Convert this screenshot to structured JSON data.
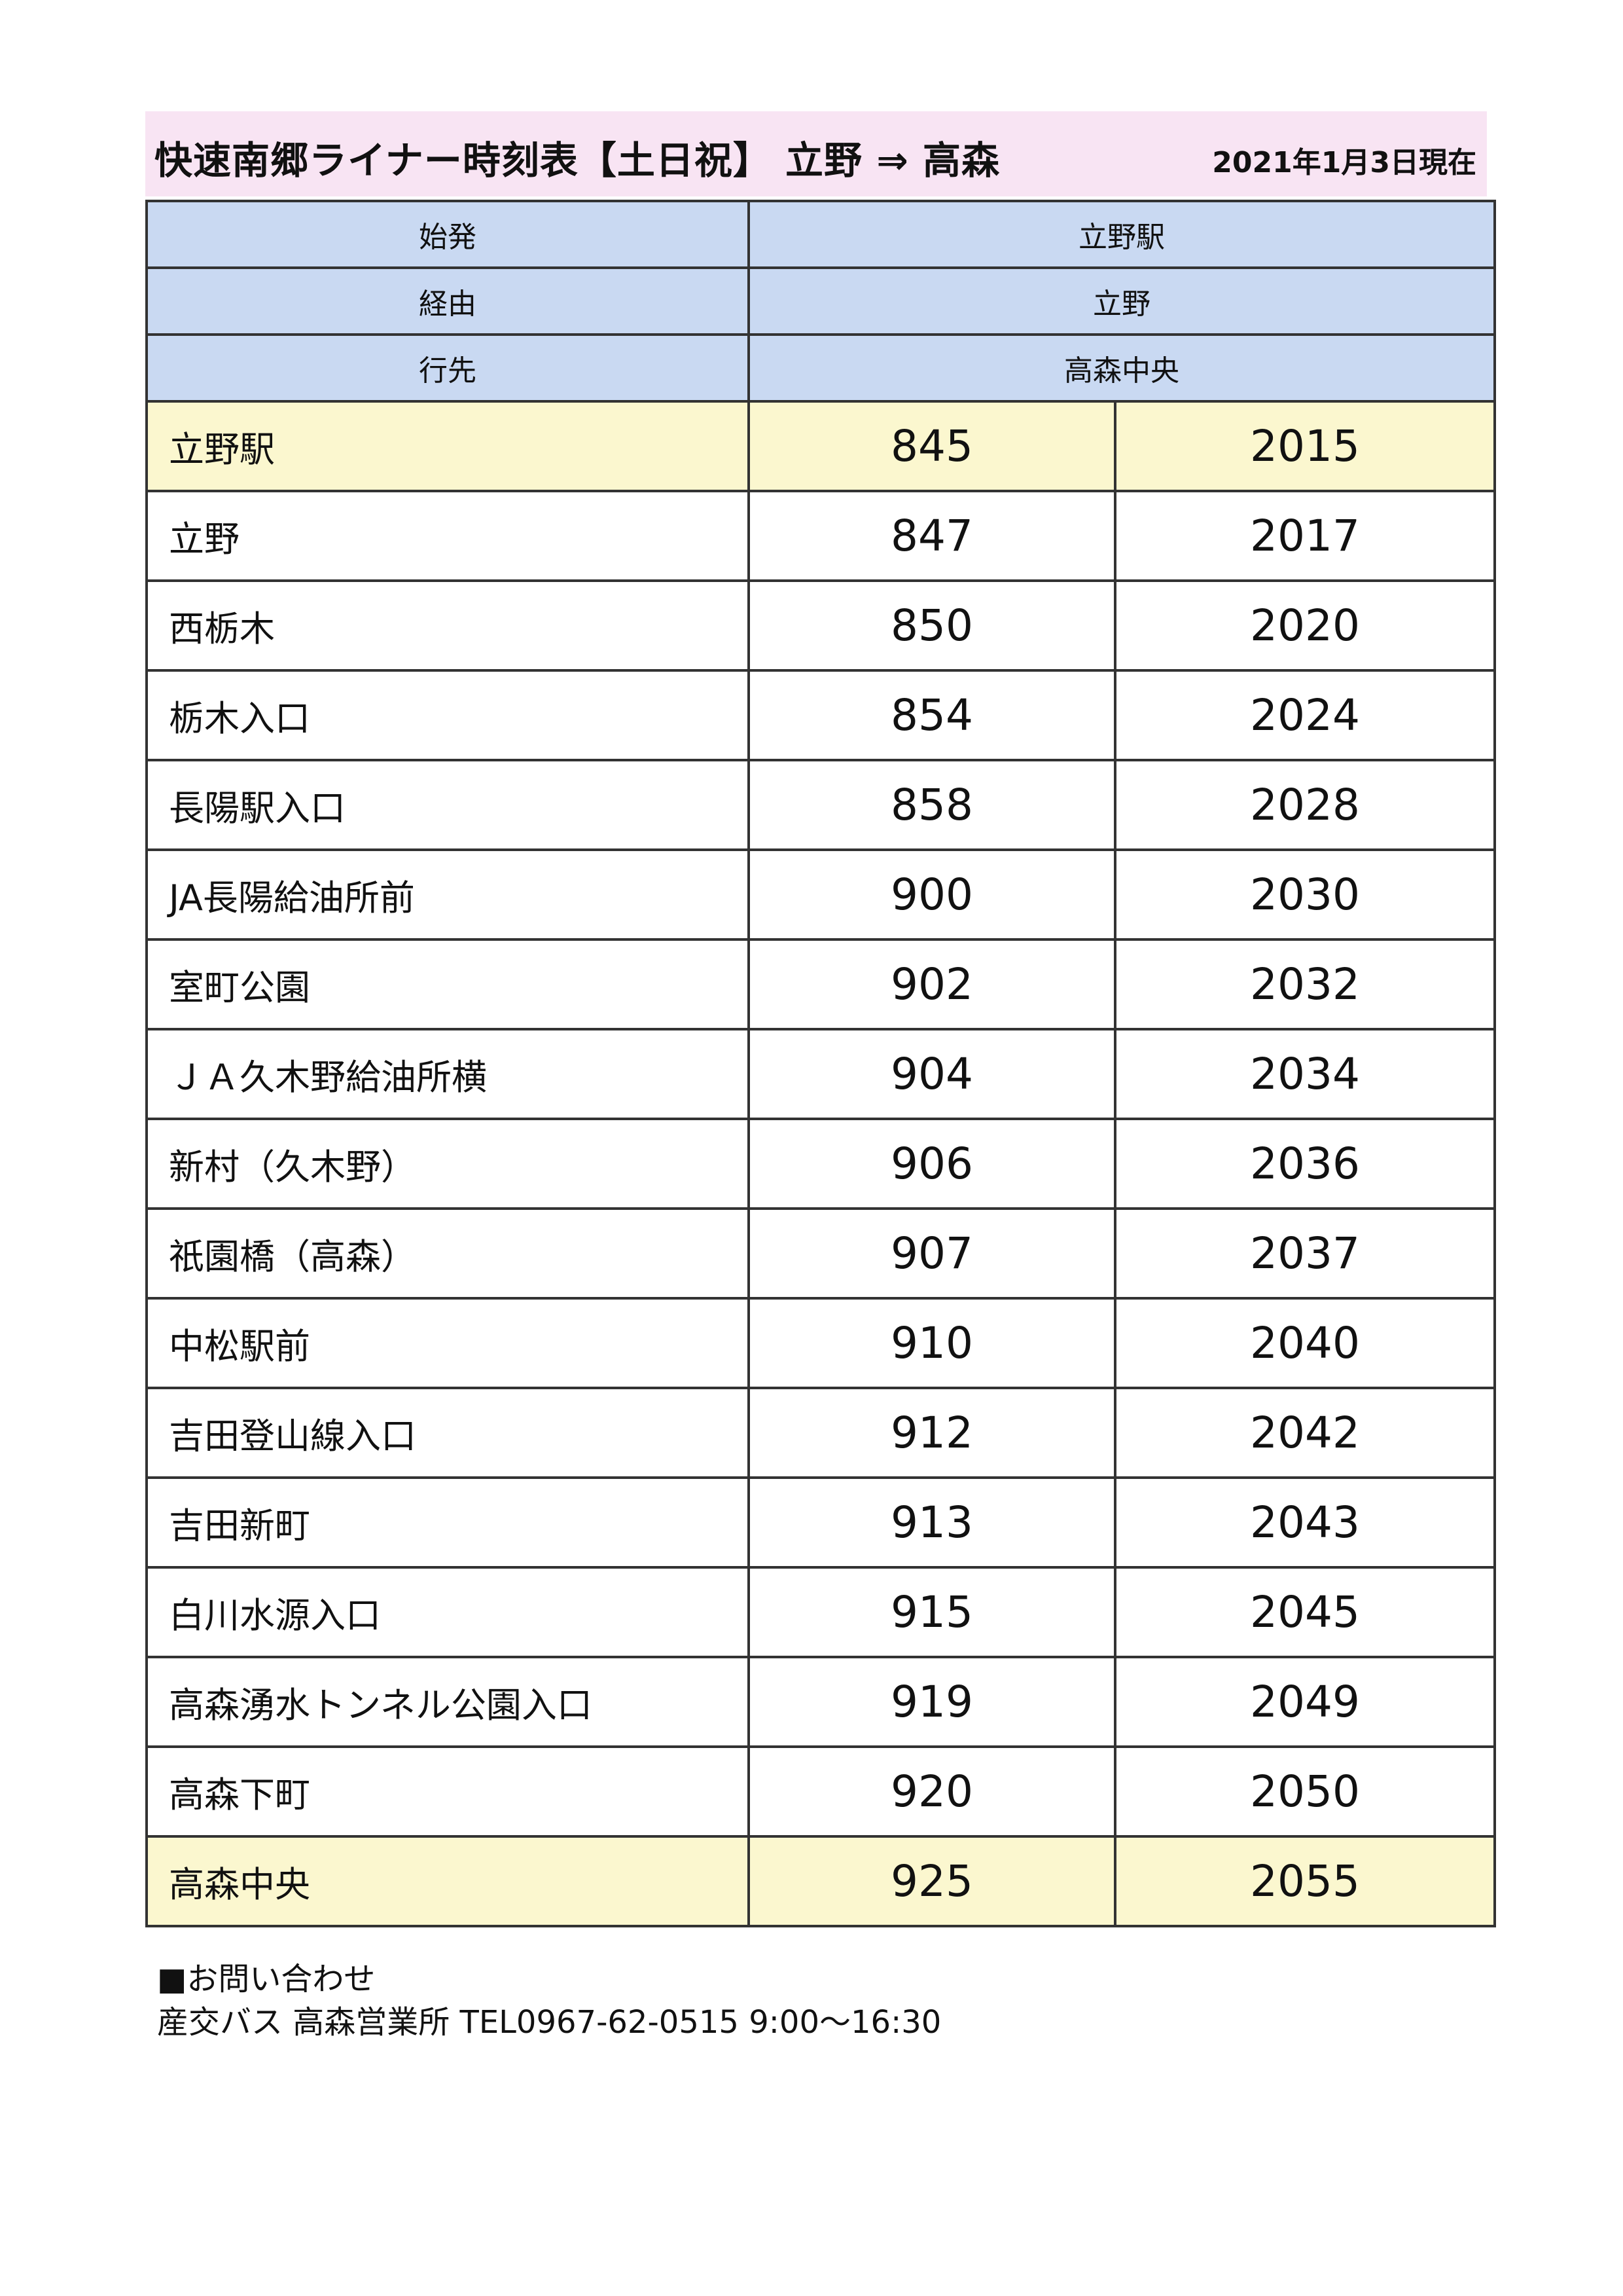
{
  "header": {
    "title": "快速南郷ライナー時刻表【土日祝】 立野 ⇒ 高森",
    "as_of": "2021年1月3日現在"
  },
  "route_info": [
    {
      "label": "始発",
      "value": "立野駅"
    },
    {
      "label": "経由",
      "value": "立野"
    },
    {
      "label": "行先",
      "value": "高森中央"
    }
  ],
  "stops": [
    {
      "name": "立野駅",
      "times": [
        "845",
        "2015"
      ]
    },
    {
      "name": "立野",
      "times": [
        "847",
        "2017"
      ]
    },
    {
      "name": "西栃木",
      "times": [
        "850",
        "2020"
      ]
    },
    {
      "name": "栃木入口",
      "times": [
        "854",
        "2024"
      ]
    },
    {
      "name": "長陽駅入口",
      "times": [
        "858",
        "2028"
      ]
    },
    {
      "name": "JA長陽給油所前",
      "times": [
        "900",
        "2030"
      ]
    },
    {
      "name": "室町公園",
      "times": [
        "902",
        "2032"
      ]
    },
    {
      "name": "ＪＡ久木野給油所横",
      "times": [
        "904",
        "2034"
      ]
    },
    {
      "name": "新村（久木野）",
      "times": [
        "906",
        "2036"
      ]
    },
    {
      "name": "祇園橋（高森）",
      "times": [
        "907",
        "2037"
      ]
    },
    {
      "name": "中松駅前",
      "times": [
        "910",
        "2040"
      ]
    },
    {
      "name": "吉田登山線入口",
      "times": [
        "912",
        "2042"
      ]
    },
    {
      "name": "吉田新町",
      "times": [
        "913",
        "2043"
      ]
    },
    {
      "name": "白川水源入口",
      "times": [
        "915",
        "2045"
      ]
    },
    {
      "name": "高森湧水トンネル公園入口",
      "times": [
        "919",
        "2049"
      ]
    },
    {
      "name": "高森下町",
      "times": [
        "920",
        "2050"
      ]
    },
    {
      "name": "高森中央",
      "times": [
        "925",
        "2055"
      ]
    }
  ],
  "contact": {
    "heading": "■お問い合わせ",
    "line": "産交バス 高森営業所 TEL0967-62-0515 9:00～16:30"
  },
  "colors": {
    "title_background": "#f8e4f3",
    "header_cell_background": "#c9d9f2",
    "highlight_row_background": "#fbf7cf",
    "border": "#333333"
  }
}
